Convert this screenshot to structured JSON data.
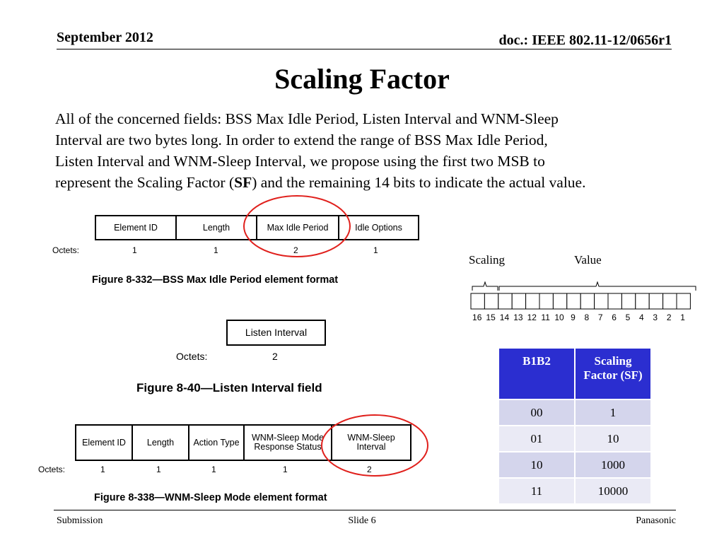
{
  "header": {
    "date": "September 2012",
    "doc": "doc.: IEEE 802.11-12/0656r1"
  },
  "title": "Scaling Factor",
  "body": {
    "line1": "All of the concerned fields: BSS Max Idle Period, Listen Interval and WNM-Sleep",
    "line2": "Interval are two bytes long. In order to extend the range of BSS Max Idle Period,",
    "line3": "Listen Interval and WNM-Sleep Interval, we propose using the first two MSB to",
    "line4_pre": "represent the Scaling Factor (",
    "line4_bold": "SF",
    "line4_post": ") and the remaining 14 bits to indicate the actual value."
  },
  "fig1": {
    "fields": [
      "Element ID",
      "Length",
      "Max Idle Period",
      "Idle Options"
    ],
    "octets_label": "Octets:",
    "octets": [
      "1",
      "1",
      "2",
      "1"
    ],
    "caption": "Figure 8-332—BSS Max Idle Period element format"
  },
  "fig2": {
    "field": "Listen Interval",
    "octets_label": "Octets:",
    "octets": "2",
    "caption": "Figure 8-40—Listen Interval field"
  },
  "fig3": {
    "fields": [
      "Element ID",
      "Length",
      "Action Type",
      "WNM-Sleep Mode Response Status",
      "WNM-Sleep Interval"
    ],
    "octets_label": "Octets:",
    "octets": [
      "1",
      "1",
      "1",
      "1",
      "2"
    ],
    "caption": "Figure 8-338—WNM-Sleep Mode element format"
  },
  "bits": {
    "scaling_label": "Scaling",
    "value_label": "Value",
    "numbers": [
      "16",
      "15",
      "14",
      "13",
      "12",
      "11",
      "10",
      "9",
      "8",
      "7",
      "6",
      "5",
      "4",
      "3",
      "2",
      "1"
    ]
  },
  "sf_table": {
    "headers": [
      "B1B2",
      "Scaling Factor (SF)"
    ],
    "rows": [
      [
        "00",
        "1"
      ],
      [
        "01",
        "10"
      ],
      [
        "10",
        "1000"
      ],
      [
        "11",
        "10000"
      ]
    ],
    "header_color": "#2b2ed0",
    "circle_color": "#e0201c"
  },
  "footer": {
    "left": "Submission",
    "center": "Slide 6",
    "right": "Panasonic"
  }
}
